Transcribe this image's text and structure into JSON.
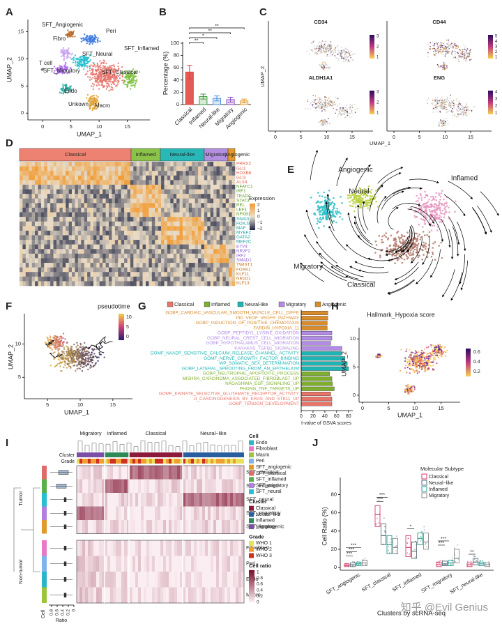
{
  "figure": {
    "panel_labels": [
      "A",
      "B",
      "C",
      "D",
      "E",
      "F",
      "G",
      "H",
      "I",
      "J"
    ],
    "a": {
      "clusters": [
        "SFT_Angiogenic",
        "Fibro",
        "Peri",
        "SFT_Neural",
        "SFT_Inflamed",
        "T cell",
        "SFT_Migratory",
        "SFT_Classical",
        "Endo",
        "Unkown",
        "Macro"
      ],
      "x_label": "UMAP_1",
      "y_label": "UMAP_2",
      "x_ticks": [
        0,
        5,
        10,
        15
      ],
      "y_ticks": [
        0,
        5,
        10,
        15
      ]
    },
    "c": {
      "genes": [
        "CD34",
        "CD44",
        "ALDH1A1",
        "ENG"
      ],
      "legend_ticks": [
        [
          3,
          2,
          1
        ],
        [
          5,
          4,
          3,
          2,
          1
        ],
        [
          3,
          2,
          1
        ],
        [
          4,
          3,
          2,
          1
        ]
      ],
      "x_label": "UMAP_1",
      "y_label": "UMAP_2",
      "x_ticks": [
        0,
        5,
        10,
        15
      ]
    },
    "d": {
      "groups": [
        "Classical",
        "Inflamed",
        "Neural-like",
        "Migratory",
        "Angiogenic"
      ],
      "genes": [
        "PRRX2",
        "GLI1",
        "HOXB6",
        "GLI3",
        "ALX4",
        "NFATC1",
        "IRF1",
        "TEAD4",
        "STAT3",
        "REL",
        "LEF1",
        "NFKB1",
        "SNAI3",
        "FOXJ3",
        "MAF",
        "MYEF2",
        "GATA2",
        "MEF2C",
        "ETV4",
        "NR2F2",
        "IRF2",
        "SMAD1",
        "TWIST1",
        "FOXK1",
        "KLF11",
        "NR1D1",
        "KLF13"
      ],
      "legend_title": "Expression",
      "legend_ticks": [
        "2",
        "1",
        "0",
        "−1",
        "−2"
      ]
    },
    "e": {
      "states": [
        "Angiogenic",
        "Neural",
        "Inflamed",
        "Migratory",
        "Classical"
      ]
    },
    "f": {
      "legend_title": "pseudotime",
      "legend_ticks": [
        10,
        5,
        0
      ],
      "x_label": "UMAP_1",
      "y_label": "UMAP_2",
      "x_ticks": [
        5,
        10,
        15
      ],
      "y_ticks": [
        5,
        10
      ]
    },
    "h": {
      "title": "Hallmark_Hypoxia score",
      "legend_ticks": [
        0.6,
        0.4,
        0.2
      ],
      "x_label": "UMAP_1",
      "y_label": "UMAP_2",
      "x_ticks": [
        0,
        5,
        10,
        15
      ],
      "y_ticks": [
        0,
        5,
        10
      ]
    },
    "i": {
      "column_groups": [
        "Migratory",
        "Inflamed",
        "Classical",
        "Neural−like"
      ],
      "annotation_rows": [
        "Cluster",
        "Grade"
      ],
      "rows": [
        "SFT_classical",
        "SFT_inflamed",
        "SFT_neural",
        "SFT_migratory",
        "SFT_angiogenic",
        "Fibroblast",
        "Peri",
        "Endo",
        "Macro"
      ],
      "row_groups": [
        "Tumor",
        "Non-tumor"
      ],
      "cell_axis": "Cell",
      "ratio_axis": "Ratio",
      "ratio_ticks": [
        0.8,
        0.6,
        0.4,
        0.2,
        0
      ],
      "legends": [
        {
          "title": "Cell",
          "items": [
            "Endo",
            "Fibroblast",
            "Macro",
            "Peri",
            "SFT_angiogenic",
            "SFT_classical",
            "SFT_inflamed",
            "SFT_migratory",
            "SFT_neural"
          ],
          "colors": [
            "#2bb5c8",
            "#e879c6",
            "#9cc43c",
            "#7fb5ea",
            "#e39a2d",
            "#e06b6b",
            "#58b04a",
            "#b07fe0",
            "#27c0d0"
          ]
        },
        {
          "title": "Cluster",
          "items": [
            "Classical",
            "Neural−like",
            "Inflamed",
            "Migratory"
          ],
          "colors": [
            "#8c1b3b",
            "#2a5d9f",
            "#2e8b57",
            "#7b4ea8"
          ]
        },
        {
          "title": "Grade",
          "items": [
            "WHO 1",
            "WHO 2",
            "WHO 3"
          ],
          "colors": [
            "#e8e25a",
            "#f0a030",
            "#d03020"
          ]
        },
        {
          "title": "Cell ratio",
          "items": [
            1,
            0.8,
            0.6,
            0.4,
            0.2,
            0
          ]
        }
      ]
    },
    "watermark": "知乎 @Evil Genius"
  },
  "chart_data": [
    {
      "type": "bar",
      "y_label": "Percentage (%)",
      "categories": [
        "Classical",
        "Inflamed",
        "Neural-like",
        "Migratory",
        "Angiogenic"
      ],
      "values": [
        53,
        13,
        10,
        8,
        6
      ],
      "errors": [
        11,
        4,
        4,
        4,
        3
      ],
      "colors": [
        "#e0403a",
        "#3a9a3a",
        "#4a90d9",
        "#8a4ac0",
        "#e39a2d"
      ],
      "ylim": [
        0,
        100
      ],
      "yticks": [
        0,
        20,
        40,
        60,
        80,
        100
      ],
      "significance": [
        "**",
        "**",
        "*",
        "**"
      ]
    },
    {
      "type": "barh",
      "x_label": "t-value of GSVA scores",
      "legend": [
        "Classical",
        "Inflamed",
        "Neural-like",
        "Migratory",
        "Angiogenic"
      ],
      "legend_colors": [
        "#e8756a",
        "#7fb02d",
        "#1fb5b5",
        "#b28be6",
        "#d98c2b"
      ],
      "categories": [
        "GOBP_CARDIAC_VASCULAR_SMOOTH_MUSCLE_CELL_DIFFE",
        "PID_VEGF_VEGFR_PATHWAY",
        "GOBP_INDUCTION_OF_POSITIVE_CHEMOTAXIS",
        "FARDIN_HYPOXIA_11",
        "GOBP_PEPTIDYL_LYSINE_OXIDATION",
        "GOBP_NEURAL_CREST_CELL_MIGRATION",
        "GOBP_HYPOTHALAMUS_CELL_MIGRATION",
        "KARAKAS_TGFB1_SIGNALING",
        "GOMF_NAADP_SENSITIVE_CALCIUM_RELEASE_CHANNEL_ACTIVITY",
        "GOMF_NERVE_GROWTH_FACTOR_BINDING",
        "WP_SOMATIC_SEX_DETERMINATION",
        "GOBP_LATERAL_SPROUTING_FROM_AN_EPITHELIUM",
        "GOBP_NEUTROPHIL_APOPTOTIC_PROCESS",
        "MISHRA_CARCINOMA_ASSOCIATED_FIBROBLAST_UP",
        "NAGASHIMA_EGF_SIGNALING_UP",
        "PHONG_TNF_TARGETS_UP",
        "GOMF_KAINATE_SELECTIVE_GLUTAMATE_RECEPTOR_ACTIVITY",
        "JI_CARCINOGENESIS_BY_KRAS_AND_STK11_UP",
        "GOBP_TENDON_DEVELOPMENT"
      ],
      "values": [
        45,
        45,
        44,
        44,
        52,
        52,
        50,
        69,
        68,
        74,
        78,
        80,
        48,
        52,
        53,
        56,
        50,
        52,
        52
      ],
      "bar_colors": [
        "#d98c2b",
        "#d98c2b",
        "#d98c2b",
        "#d98c2b",
        "#b28be6",
        "#b28be6",
        "#b28be6",
        "#b28be6",
        "#1fb5b5",
        "#1fb5b5",
        "#1fb5b5",
        "#1fb5b5",
        "#7fb02d",
        "#7fb02d",
        "#7fb02d",
        "#7fb02d",
        "#e8756a",
        "#e8756a",
        "#e8756a"
      ],
      "xlim": [
        0,
        85
      ],
      "xticks": [
        0,
        20,
        40,
        60,
        80
      ]
    },
    {
      "type": "box",
      "y_label": "Cell Ratio (%)",
      "x_label": "Clusters by scRNA-seq",
      "legend_title": "Molecular Subtype",
      "categories": [
        "SFT_angiogenic",
        "SFT_classical",
        "SFT_inflamed",
        "SFT_migratory",
        "SFT_neural-like"
      ],
      "series": [
        {
          "name": "Classical",
          "color": "#d43d6b",
          "q1": [
            1,
            45,
            12,
            1,
            1
          ],
          "median": [
            2,
            58,
            22,
            3,
            3
          ],
          "q3": [
            4,
            68,
            35,
            6,
            5
          ]
        },
        {
          "name": "Neural−like",
          "color": "#5b6e7a",
          "q1": [
            1,
            25,
            10,
            2,
            3
          ],
          "median": [
            3,
            35,
            18,
            4,
            6
          ],
          "q3": [
            5,
            48,
            28,
            7,
            10
          ]
        },
        {
          "name": "Inflamed",
          "color": "#2a9d8f",
          "q1": [
            2,
            15,
            25,
            2,
            2
          ],
          "median": [
            4,
            25,
            32,
            5,
            4
          ],
          "q3": [
            6,
            35,
            38,
            8,
            6
          ]
        },
        {
          "name": "Migratory",
          "color": "#8a8a8a",
          "q1": [
            2,
            15,
            20,
            5,
            1
          ],
          "median": [
            5,
            22,
            28,
            10,
            3
          ],
          "q3": [
            8,
            32,
            38,
            20,
            5
          ]
        }
      ],
      "ylim": [
        -3,
        95
      ],
      "yticks": [
        0,
        20,
        40,
        60,
        80
      ],
      "significance": [
        [
          "***",
          "***",
          "***"
        ],
        [
          "***",
          "***"
        ],
        [
          "*"
        ],
        [
          "***",
          "***"
        ],
        [
          "**"
        ]
      ]
    }
  ]
}
